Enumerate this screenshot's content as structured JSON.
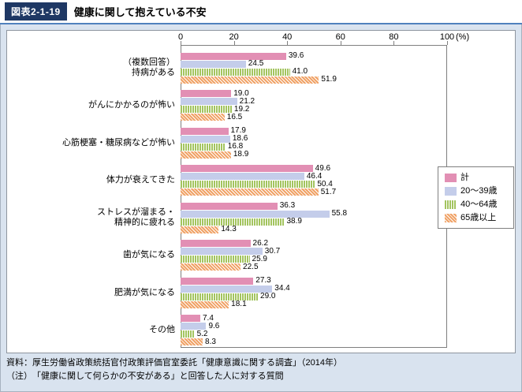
{
  "header": {
    "figure_label": "図表2-1-19",
    "title": "健康に関して抱えている不安"
  },
  "chart_data": {
    "type": "bar",
    "orientation": "horizontal",
    "title": "健康に関して抱えている不安",
    "unit": "(%)",
    "xlim": [
      0,
      100
    ],
    "x_ticks": [
      0,
      20,
      40,
      60,
      80,
      100
    ],
    "grid": false,
    "legend_position": "right",
    "multiple_answer_note": "（複数回答）",
    "categories": [
      "持病がある",
      "がんにかかるのが怖い",
      "心筋梗塞・糖尿病などが怖い",
      "体力が衰えてきた",
      "ストレスが溜まる・精神的に疲れる",
      "歯が気になる",
      "肥満が気になる",
      "その他"
    ],
    "category_label_lines": [
      [
        "（複数回答）",
        "持病がある"
      ],
      [
        "がんにかかるのが怖い"
      ],
      [
        "心筋梗塞・糖尿病などが怖い"
      ],
      [
        "体力が衰えてきた"
      ],
      [
        "ストレスが溜まる・",
        "精神的に疲れる"
      ],
      [
        "歯が気になる"
      ],
      [
        "肥満が気になる"
      ],
      [
        "その他"
      ]
    ],
    "series": [
      {
        "name": "計",
        "color": "#e28fb4",
        "pattern": "solid",
        "values": [
          39.6,
          19.0,
          17.9,
          49.6,
          36.3,
          26.2,
          27.3,
          7.4
        ]
      },
      {
        "name": "20～39歳",
        "color": "#c4cdea",
        "pattern": "solid",
        "values": [
          24.5,
          21.2,
          18.6,
          46.4,
          55.8,
          30.7,
          34.4,
          9.6
        ]
      },
      {
        "name": "40～64歳",
        "color": "#a3c45f",
        "pattern": "vertical-stripes",
        "values": [
          41.0,
          19.2,
          16.8,
          50.4,
          38.9,
          25.9,
          29.0,
          5.2
        ]
      },
      {
        "name": "65歳以上",
        "color": "#f0a266",
        "pattern": "diagonal-stripes",
        "values": [
          51.9,
          16.5,
          18.9,
          51.7,
          14.3,
          22.5,
          18.1,
          8.3
        ]
      }
    ]
  },
  "footer": {
    "source": "資料：厚生労働省政策統括官付政策評価官室委託「健康意識に関する調査」（2014年）",
    "note": "（注）　「健康に関して何らかの不安がある」と回答した人に対する質問"
  }
}
